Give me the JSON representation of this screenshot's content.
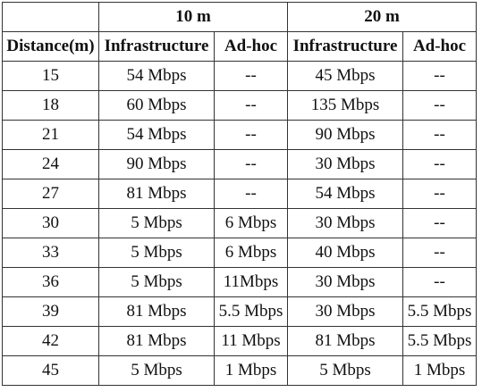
{
  "group_headers": [
    "10 m",
    "20 m"
  ],
  "column_headers": [
    "Distance(m)",
    "Infrastructure",
    "Ad-hoc",
    "Infrastructure",
    "Ad-hoc"
  ],
  "rows": [
    [
      "15",
      "54 Mbps",
      "--",
      "45 Mbps",
      "--"
    ],
    [
      "18",
      "60 Mbps",
      "--",
      "135 Mbps",
      "--"
    ],
    [
      "21",
      "54 Mbps",
      "--",
      "90 Mbps",
      "--"
    ],
    [
      "24",
      "90 Mbps",
      "--",
      "30 Mbps",
      "--"
    ],
    [
      "27",
      "81 Mbps",
      "--",
      "54 Mbps",
      "--"
    ],
    [
      "30",
      "5 Mbps",
      "6 Mbps",
      "30 Mbps",
      "--"
    ],
    [
      "33",
      "5 Mbps",
      "6 Mbps",
      "40 Mbps",
      "--"
    ],
    [
      "36",
      "5 Mbps",
      "11Mbps",
      "30 Mbps",
      "--"
    ],
    [
      "39",
      "81 Mbps",
      "5.5 Mbps",
      "30 Mbps",
      "5.5 Mbps"
    ],
    [
      "42",
      "81 Mbps",
      "11 Mbps",
      "81 Mbps",
      "5.5 Mbps"
    ],
    [
      "45",
      "5 Mbps",
      "1 Mbps",
      "5 Mbps",
      "1 Mbps"
    ]
  ]
}
